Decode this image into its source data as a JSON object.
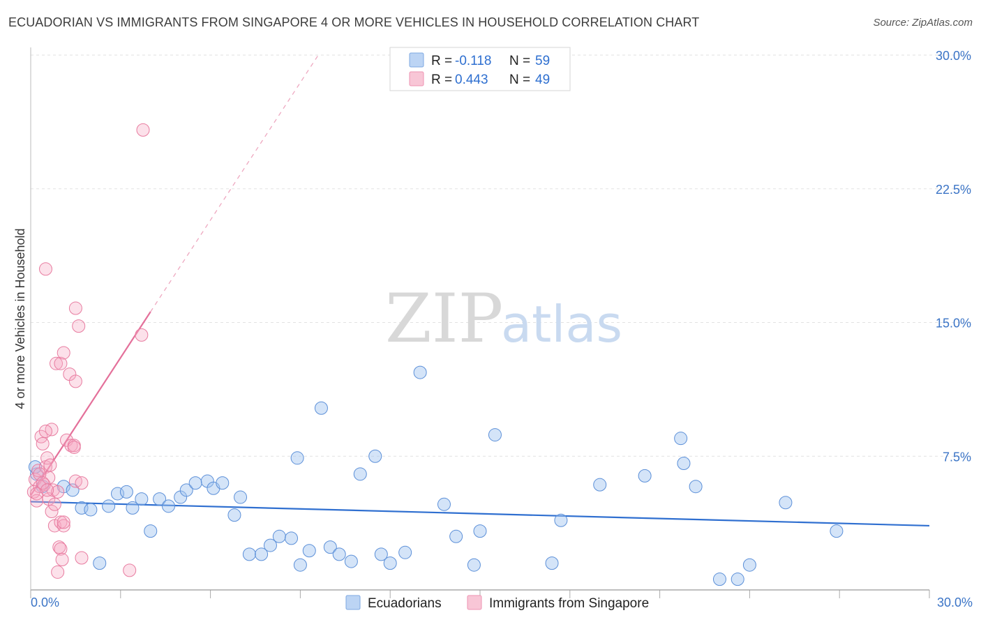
{
  "header": {
    "title": "ECUADORIAN VS IMMIGRANTS FROM SINGAPORE 4 OR MORE VEHICLES IN HOUSEHOLD CORRELATION CHART",
    "source": "Source: ZipAtlas.com"
  },
  "watermark": {
    "zip": "ZIP",
    "atlas": "atlas"
  },
  "legend": {
    "rows": [
      {
        "r_label": "R = ",
        "r_value": "-0.118",
        "n_label": "N = ",
        "n_value": "59",
        "color": "#6ea0e0"
      },
      {
        "r_label": "R = ",
        "r_value": "0.443",
        "n_label": "N = ",
        "n_value": "49",
        "color": "#f08fae"
      }
    ]
  },
  "bottom_legend": {
    "items": [
      {
        "label": "Ecuadorians",
        "color": "#6ea0e0"
      },
      {
        "label": "Immigrants from Singapore",
        "color": "#f08fae"
      }
    ]
  },
  "chart_data": {
    "type": "scatter",
    "title": "ECUADORIAN VS IMMIGRANTS FROM SINGAPORE 4 OR MORE VEHICLES IN HOUSEHOLD CORRELATION CHART",
    "xlabel": "",
    "ylabel": "4 or more Vehicles in Household",
    "xlim": [
      0,
      30
    ],
    "ylim": [
      0,
      30
    ],
    "x_tick_labels": [
      "0.0%",
      "30.0%"
    ],
    "y_ticks": [
      {
        "value": 7.5,
        "label": "7.5%"
      },
      {
        "value": 15.0,
        "label": "15.0%"
      },
      {
        "value": 22.5,
        "label": "22.5%"
      },
      {
        "value": 30.0,
        "label": "30.0%"
      }
    ],
    "series": [
      {
        "name": "Ecuadorians",
        "color": "#6ea0e0",
        "stroke": "#5b8fd8",
        "trend": {
          "x": [
            0,
            30
          ],
          "y": [
            4.95,
            3.6
          ],
          "color": "#2f6fd0",
          "dashed_extension": false
        },
        "points": [
          {
            "x": 0.2,
            "y": 6.5
          },
          {
            "x": 0.4,
            "y": 5.8
          },
          {
            "x": 1.1,
            "y": 5.8
          },
          {
            "x": 1.4,
            "y": 5.6
          },
          {
            "x": 1.7,
            "y": 4.6
          },
          {
            "x": 2.0,
            "y": 4.5
          },
          {
            "x": 2.3,
            "y": 1.5
          },
          {
            "x": 2.6,
            "y": 4.7
          },
          {
            "x": 2.9,
            "y": 5.4
          },
          {
            "x": 3.2,
            "y": 5.5
          },
          {
            "x": 3.4,
            "y": 4.6
          },
          {
            "x": 3.7,
            "y": 5.1
          },
          {
            "x": 4.0,
            "y": 3.3
          },
          {
            "x": 4.3,
            "y": 5.1
          },
          {
            "x": 4.6,
            "y": 4.7
          },
          {
            "x": 5.0,
            "y": 5.2
          },
          {
            "x": 5.2,
            "y": 5.6
          },
          {
            "x": 5.5,
            "y": 6.0
          },
          {
            "x": 5.9,
            "y": 6.1
          },
          {
            "x": 6.1,
            "y": 5.7
          },
          {
            "x": 6.4,
            "y": 6.0
          },
          {
            "x": 6.8,
            "y": 4.2
          },
          {
            "x": 7.0,
            "y": 5.2
          },
          {
            "x": 7.3,
            "y": 2.0
          },
          {
            "x": 7.7,
            "y": 2.0
          },
          {
            "x": 8.0,
            "y": 2.5
          },
          {
            "x": 8.3,
            "y": 3.0
          },
          {
            "x": 8.7,
            "y": 2.9
          },
          {
            "x": 8.9,
            "y": 7.4
          },
          {
            "x": 9.0,
            "y": 1.4
          },
          {
            "x": 9.3,
            "y": 2.2
          },
          {
            "x": 9.7,
            "y": 10.2
          },
          {
            "x": 10.0,
            "y": 2.4
          },
          {
            "x": 10.3,
            "y": 2.0
          },
          {
            "x": 10.7,
            "y": 1.6
          },
          {
            "x": 11.0,
            "y": 6.5
          },
          {
            "x": 11.5,
            "y": 7.5
          },
          {
            "x": 11.7,
            "y": 2.0
          },
          {
            "x": 12.0,
            "y": 1.5
          },
          {
            "x": 12.5,
            "y": 2.1
          },
          {
            "x": 13.0,
            "y": 12.2
          },
          {
            "x": 13.8,
            "y": 4.8
          },
          {
            "x": 14.2,
            "y": 3.0
          },
          {
            "x": 14.8,
            "y": 1.4
          },
          {
            "x": 15.0,
            "y": 3.3
          },
          {
            "x": 15.5,
            "y": 8.7
          },
          {
            "x": 17.4,
            "y": 1.5
          },
          {
            "x": 17.7,
            "y": 3.9
          },
          {
            "x": 19.0,
            "y": 5.9
          },
          {
            "x": 20.5,
            "y": 6.4
          },
          {
            "x": 21.7,
            "y": 8.5
          },
          {
            "x": 21.8,
            "y": 7.1
          },
          {
            "x": 22.2,
            "y": 5.8
          },
          {
            "x": 23.0,
            "y": 0.6
          },
          {
            "x": 23.6,
            "y": 0.6
          },
          {
            "x": 24.0,
            "y": 1.4
          },
          {
            "x": 25.2,
            "y": 4.9
          },
          {
            "x": 26.9,
            "y": 3.3
          },
          {
            "x": 0.15,
            "y": 6.9
          }
        ]
      },
      {
        "name": "Immigrants from Singapore",
        "color": "#f08fae",
        "stroke": "#e87ca0",
        "trend": {
          "x": [
            0,
            4.0
          ],
          "y": [
            5.3,
            15.6
          ],
          "color": "#e4709a",
          "dashed_to": {
            "x": 9.6,
            "y": 30.0
          }
        },
        "points": [
          {
            "x": 0.1,
            "y": 5.5
          },
          {
            "x": 0.15,
            "y": 6.2
          },
          {
            "x": 0.2,
            "y": 5.0
          },
          {
            "x": 0.25,
            "y": 6.7
          },
          {
            "x": 0.3,
            "y": 5.8
          },
          {
            "x": 0.35,
            "y": 8.6
          },
          {
            "x": 0.4,
            "y": 8.2
          },
          {
            "x": 0.45,
            "y": 5.9
          },
          {
            "x": 0.5,
            "y": 6.9
          },
          {
            "x": 0.55,
            "y": 7.4
          },
          {
            "x": 0.6,
            "y": 6.3
          },
          {
            "x": 0.6,
            "y": 5.1
          },
          {
            "x": 0.65,
            "y": 7.0
          },
          {
            "x": 0.7,
            "y": 9.0
          },
          {
            "x": 0.7,
            "y": 4.4
          },
          {
            "x": 0.75,
            "y": 5.6
          },
          {
            "x": 0.8,
            "y": 3.6
          },
          {
            "x": 0.8,
            "y": 4.8
          },
          {
            "x": 0.85,
            "y": 12.7
          },
          {
            "x": 0.9,
            "y": 1.0
          },
          {
            "x": 0.9,
            "y": 5.5
          },
          {
            "x": 0.95,
            "y": 2.4
          },
          {
            "x": 1.0,
            "y": 2.3
          },
          {
            "x": 1.05,
            "y": 1.7
          },
          {
            "x": 1.0,
            "y": 3.8
          },
          {
            "x": 1.1,
            "y": 3.6
          },
          {
            "x": 1.0,
            "y": 12.7
          },
          {
            "x": 1.1,
            "y": 13.3
          },
          {
            "x": 1.1,
            "y": 3.8
          },
          {
            "x": 1.2,
            "y": 8.4
          },
          {
            "x": 1.3,
            "y": 12.1
          },
          {
            "x": 1.35,
            "y": 8.1
          },
          {
            "x": 1.5,
            "y": 11.7
          },
          {
            "x": 1.5,
            "y": 15.8
          },
          {
            "x": 1.45,
            "y": 8.1
          },
          {
            "x": 1.45,
            "y": 8.0
          },
          {
            "x": 1.5,
            "y": 6.1
          },
          {
            "x": 1.6,
            "y": 14.8
          },
          {
            "x": 1.7,
            "y": 6.0
          },
          {
            "x": 1.7,
            "y": 1.8
          },
          {
            "x": 0.5,
            "y": 18.0
          },
          {
            "x": 3.3,
            "y": 1.1
          },
          {
            "x": 3.7,
            "y": 14.3
          },
          {
            "x": 3.75,
            "y": 25.8
          },
          {
            "x": 0.3,
            "y": 6.5
          },
          {
            "x": 0.4,
            "y": 6.0
          },
          {
            "x": 0.2,
            "y": 5.4
          },
          {
            "x": 0.5,
            "y": 8.9
          },
          {
            "x": 0.55,
            "y": 5.6
          }
        ]
      }
    ]
  }
}
